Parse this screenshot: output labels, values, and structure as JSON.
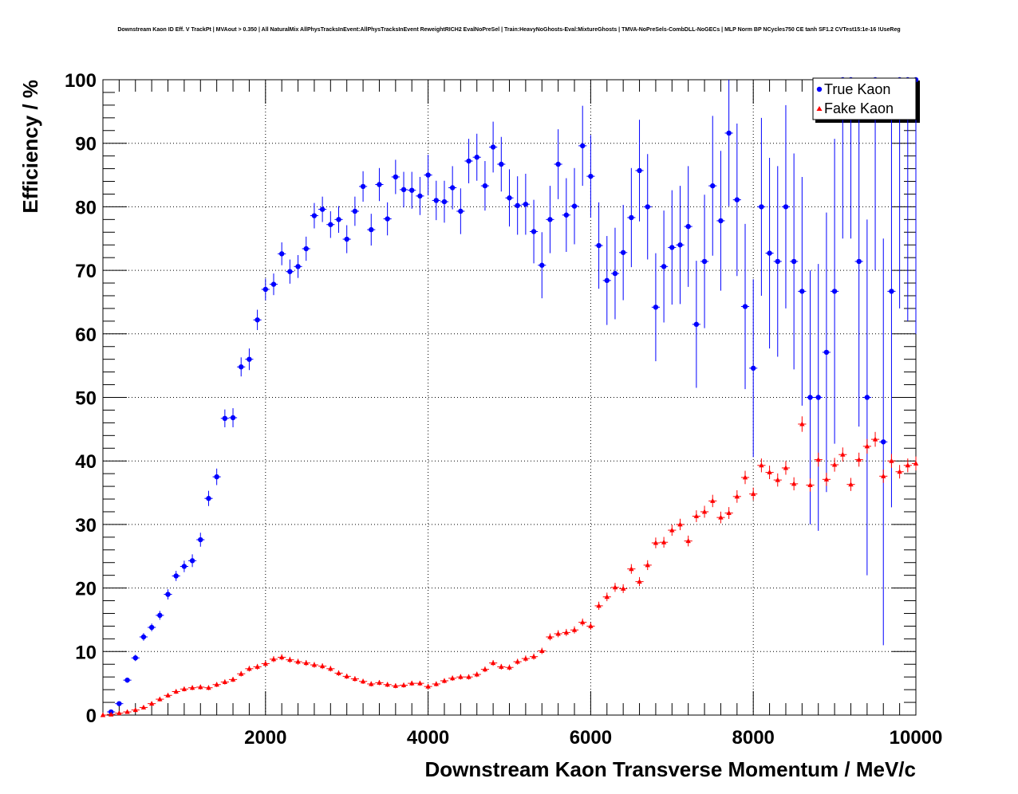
{
  "chart_data": {
    "type": "scatter",
    "title": "Downstream Kaon ID Eff. V TrackPt | MVAout > 0.350 | All NaturalMix AllPhysTracksInEvent:AllPhysTracksInEvent ReweightRICH2 EvalNoPreSel | Train:HeavyNoGhosts-Eval:MixtureGhosts | TMVA-NoPreSels-CombDLL-NoGECs | MLP Norm BP NCycles750 CE tanh SF1.2 CVTest15:1e-16 !UseReg",
    "xlabel": "Downstream Kaon Transverse Momentum / MeV/c",
    "ylabel": "Efficiency / %",
    "xlim": [
      0,
      10000
    ],
    "ylim": [
      0,
      100
    ],
    "x_ticks": [
      2000,
      4000,
      6000,
      8000,
      10000
    ],
    "y_ticks": [
      0,
      10,
      20,
      30,
      40,
      50,
      60,
      70,
      80,
      90,
      100
    ],
    "grid": true,
    "legend_position": "top-right",
    "series": [
      {
        "name": "True Kaon",
        "color": "#0000ff",
        "marker": "circle",
        "x": [
          100,
          200,
          300,
          400,
          500,
          600,
          700,
          800,
          900,
          1000,
          1100,
          1200,
          1300,
          1400,
          1500,
          1600,
          1700,
          1800,
          1900,
          2000,
          2100,
          2200,
          2300,
          2400,
          2500,
          2600,
          2700,
          2800,
          2900,
          3000,
          3100,
          3200,
          3300,
          3400,
          3500,
          3600,
          3700,
          3800,
          3900,
          4000,
          4100,
          4200,
          4300,
          4400,
          4500,
          4600,
          4700,
          4800,
          4900,
          5000,
          5100,
          5200,
          5300,
          5400,
          5500,
          5600,
          5700,
          5800,
          5900,
          6000,
          6100,
          6200,
          6300,
          6400,
          6500,
          6600,
          6700,
          6800,
          6900,
          7000,
          7100,
          7200,
          7300,
          7400,
          7500,
          7600,
          7700,
          7800,
          7900,
          8000,
          8100,
          8200,
          8300,
          8400,
          8500,
          8600,
          8700,
          8800,
          8900,
          9000,
          9100,
          9200,
          9300,
          9400,
          9500,
          9600,
          9700,
          9800,
          9900,
          10000
        ],
        "y": [
          0.5,
          1.8,
          5.5,
          9.0,
          12.3,
          13.8,
          15.7,
          19.0,
          21.9,
          23.4,
          24.3,
          27.6,
          34.1,
          37.5,
          46.7,
          46.8,
          54.8,
          56.0,
          62.2,
          67.0,
          67.8,
          72.6,
          69.8,
          70.6,
          73.4,
          78.6,
          79.6,
          77.2,
          78.0,
          74.9,
          79.3,
          83.2,
          76.4,
          83.5,
          78.1,
          84.7,
          82.7,
          82.6,
          81.7,
          85.0,
          81.0,
          80.8,
          83.0,
          79.3,
          87.2,
          87.8,
          83.3,
          89.4,
          86.7,
          81.4,
          80.2,
          80.4,
          76.1,
          70.8,
          78.0,
          86.7,
          78.7,
          80.1,
          89.6,
          84.8,
          73.9,
          68.4,
          69.5,
          72.8,
          78.3,
          85.7,
          80.0,
          64.2,
          70.6,
          73.6,
          74.0,
          76.9,
          61.5,
          71.4,
          83.3,
          77.8,
          91.6,
          81.1,
          64.3,
          54.6,
          80.0,
          72.7,
          71.4,
          80.0,
          71.4,
          66.7,
          50.0,
          50.0,
          57.1,
          66.7,
          100,
          100,
          71.4,
          50.0,
          100,
          43.0,
          66.7,
          100,
          100,
          100
        ],
        "yerr": [
          0.2,
          0.3,
          0.4,
          0.5,
          0.6,
          0.6,
          0.7,
          0.8,
          0.8,
          0.9,
          1.0,
          1.1,
          1.2,
          1.3,
          1.4,
          1.5,
          1.5,
          1.7,
          1.6,
          1.7,
          1.7,
          1.8,
          1.9,
          1.8,
          1.9,
          2.0,
          2.0,
          2.1,
          2.1,
          2.2,
          2.3,
          2.4,
          2.5,
          2.6,
          2.6,
          2.7,
          2.8,
          2.9,
          3.0,
          3.2,
          3.1,
          3.3,
          3.4,
          3.6,
          3.5,
          3.7,
          3.9,
          4.0,
          4.3,
          4.5,
          4.6,
          4.8,
          5.0,
          5.2,
          5.3,
          5.5,
          5.8,
          6.0,
          6.3,
          6.5,
          6.8,
          7.0,
          7.2,
          7.5,
          7.8,
          8.0,
          8.3,
          8.5,
          8.8,
          9.0,
          9.3,
          9.5,
          10.0,
          10.5,
          11.0,
          11.0,
          11.5,
          12.0,
          13.0,
          14.0,
          14.0,
          15.0,
          15.0,
          16.0,
          17.0,
          18.0,
          20.0,
          21.0,
          22.0,
          24.0,
          25.0,
          25.0,
          26.0,
          28.0,
          30.0,
          32.0,
          34.0,
          36.0,
          38.0,
          40.0
        ]
      },
      {
        "name": "Fake Kaon",
        "color": "#ff0000",
        "marker": "triangle",
        "x": [
          0,
          100,
          200,
          300,
          400,
          500,
          600,
          700,
          800,
          900,
          1000,
          1100,
          1200,
          1300,
          1400,
          1500,
          1600,
          1700,
          1800,
          1900,
          2000,
          2100,
          2200,
          2300,
          2400,
          2500,
          2600,
          2700,
          2800,
          2900,
          3000,
          3100,
          3200,
          3300,
          3400,
          3500,
          3600,
          3700,
          3800,
          3900,
          4000,
          4100,
          4200,
          4300,
          4400,
          4500,
          4600,
          4700,
          4800,
          4900,
          5000,
          5100,
          5200,
          5300,
          5400,
          5500,
          5600,
          5700,
          5800,
          5900,
          6000,
          6100,
          6200,
          6300,
          6400,
          6500,
          6600,
          6700,
          6800,
          6900,
          7000,
          7100,
          7200,
          7300,
          7400,
          7500,
          7600,
          7700,
          7800,
          7900,
          8000,
          8100,
          8200,
          8300,
          8400,
          8500,
          8600,
          8700,
          8800,
          8900,
          9000,
          9100,
          9200,
          9300,
          9400,
          9500,
          9600,
          9700,
          9800,
          9900,
          10000
        ],
        "y": [
          0.0,
          0.1,
          0.3,
          0.5,
          0.8,
          1.2,
          1.8,
          2.5,
          3.1,
          3.7,
          4.1,
          4.3,
          4.4,
          4.3,
          4.8,
          5.2,
          5.6,
          6.5,
          7.3,
          7.6,
          8.1,
          8.8,
          9.1,
          8.7,
          8.4,
          8.2,
          7.9,
          7.7,
          7.3,
          6.6,
          6.1,
          5.7,
          5.3,
          4.9,
          5.1,
          4.8,
          4.6,
          4.7,
          5.0,
          5.0,
          4.5,
          4.9,
          5.4,
          5.8,
          6.0,
          6.0,
          6.4,
          7.2,
          8.2,
          7.6,
          7.5,
          8.4,
          8.9,
          9.2,
          10.1,
          12.3,
          12.8,
          13.0,
          13.4,
          14.6,
          14.0,
          17.2,
          18.6,
          20.1,
          19.9,
          23.0,
          21.0,
          23.6,
          27.1,
          27.2,
          29.1,
          30.0,
          27.4,
          31.3,
          32.0,
          33.7,
          31.1,
          31.8,
          34.4,
          37.4,
          34.8,
          39.3,
          38.2,
          37.0,
          38.9,
          36.4,
          45.8,
          36.2,
          40.2,
          37.1,
          39.4,
          41.0,
          36.3,
          40.2,
          42.3,
          43.4,
          37.6,
          40.0,
          38.3,
          39.3,
          39.6
        ]
      }
    ]
  }
}
